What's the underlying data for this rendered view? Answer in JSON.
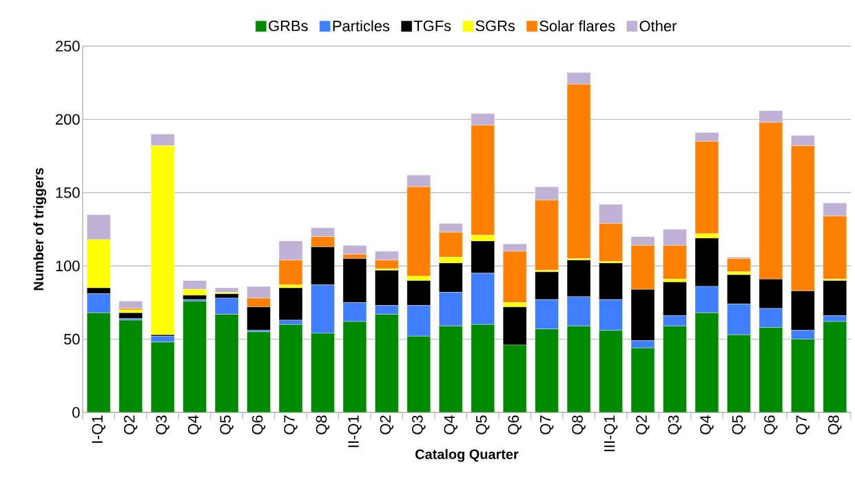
{
  "chart_data": {
    "type": "bar",
    "stacked": true,
    "xlabel": "Catalog Quarter",
    "ylabel": "Number of triggers",
    "categories": [
      "I-Q1",
      "Q2",
      "Q3",
      "Q4",
      "Q5",
      "Q6",
      "Q7",
      "Q8",
      "II-Q1",
      "Q2",
      "Q3",
      "Q4",
      "Q5",
      "Q6",
      "Q7",
      "Q8",
      "III-Q1",
      "Q2",
      "Q3",
      "Q4",
      "Q5",
      "Q6",
      "Q7",
      "Q8"
    ],
    "series": [
      {
        "name": "GRBs",
        "color": "#008a00",
        "values": [
          68,
          63,
          48,
          76,
          67,
          55,
          60,
          54,
          62,
          67,
          52,
          59,
          60,
          46,
          57,
          59,
          56,
          44,
          59,
          68,
          53,
          58,
          50,
          62
        ]
      },
      {
        "name": "Particles",
        "color": "#3f7fff",
        "values": [
          13,
          1,
          4,
          1,
          11,
          1,
          3,
          33,
          13,
          6,
          21,
          23,
          35,
          0,
          20,
          20,
          21,
          5,
          7,
          18,
          21,
          13,
          6,
          4
        ]
      },
      {
        "name": "TGFs",
        "color": "#000000",
        "values": [
          4,
          4,
          1,
          3,
          3,
          16,
          22,
          26,
          30,
          24,
          17,
          20,
          22,
          26,
          19,
          25,
          25,
          35,
          23,
          33,
          20,
          20,
          27,
          24
        ]
      },
      {
        "name": "SGRs",
        "color": "#ffff00",
        "values": [
          33,
          2,
          129,
          4,
          1,
          0,
          2,
          0,
          0,
          1,
          3,
          4,
          4,
          3,
          1,
          1,
          1,
          0,
          2,
          3,
          2,
          0,
          0,
          1
        ]
      },
      {
        "name": "Solar flares",
        "color": "#ff7f00",
        "values": [
          0,
          1,
          0,
          0,
          0,
          6,
          17,
          7,
          3,
          6,
          61,
          17,
          75,
          35,
          48,
          119,
          26,
          30,
          23,
          63,
          9,
          107,
          99,
          43
        ]
      },
      {
        "name": "Other",
        "color": "#bfb1d5",
        "values": [
          17,
          5,
          8,
          6,
          3,
          8,
          13,
          6,
          6,
          6,
          8,
          6,
          8,
          5,
          9,
          8,
          13,
          6,
          11,
          6,
          1,
          8,
          7,
          9
        ]
      }
    ],
    "ylim": [
      0,
      250
    ],
    "yticks": [
      0,
      50,
      100,
      150,
      200,
      250
    ],
    "grid": "y",
    "legend": "top"
  }
}
